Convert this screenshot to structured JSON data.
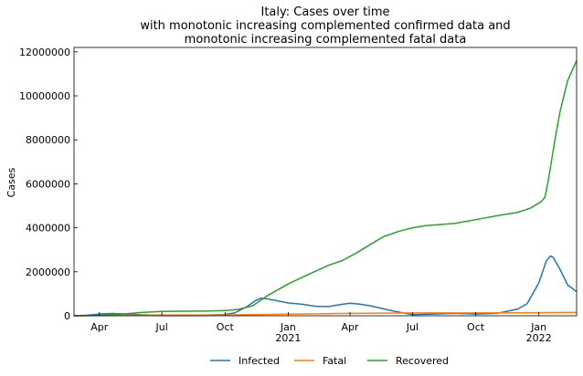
{
  "chart_data": {
    "type": "line",
    "title": [
      "Italy: Cases over time",
      "with monotonic increasing complemented confirmed data and",
      "monotonic increasing complemented fatal data"
    ],
    "xlabel": "",
    "ylabel": "Cases",
    "xlim": [
      "2020-02-24",
      "2022-02-25"
    ],
    "ylim": [
      0,
      12200000
    ],
    "x_ticks": [
      {
        "date": "2020-04-01",
        "label": "Apr",
        "sublabel": ""
      },
      {
        "date": "2020-07-01",
        "label": "Jul",
        "sublabel": ""
      },
      {
        "date": "2020-10-01",
        "label": "Oct",
        "sublabel": ""
      },
      {
        "date": "2021-01-01",
        "label": "Jan",
        "sublabel": "2021"
      },
      {
        "date": "2021-04-01",
        "label": "Apr",
        "sublabel": ""
      },
      {
        "date": "2021-07-01",
        "label": "Jul",
        "sublabel": ""
      },
      {
        "date": "2021-10-01",
        "label": "Oct",
        "sublabel": ""
      },
      {
        "date": "2022-01-01",
        "label": "Jan",
        "sublabel": "2022"
      }
    ],
    "y_ticks": [
      {
        "value": 0,
        "label": "0"
      },
      {
        "value": 2000000,
        "label": "2000000"
      },
      {
        "value": 4000000,
        "label": "4000000"
      },
      {
        "value": 6000000,
        "label": "6000000"
      },
      {
        "value": 8000000,
        "label": "8000000"
      },
      {
        "value": 10000000,
        "label": "10000000"
      },
      {
        "value": 12000000,
        "label": "12000000"
      }
    ],
    "grid": false,
    "legend_position": "bottom-center",
    "series": [
      {
        "name": "Infected",
        "color": "#1f77b4",
        "points": [
          [
            "2020-02-24",
            0
          ],
          [
            "2020-03-15",
            25000
          ],
          [
            "2020-04-05",
            90000
          ],
          [
            "2020-04-20",
            105000
          ],
          [
            "2020-05-10",
            85000
          ],
          [
            "2020-06-01",
            45000
          ],
          [
            "2020-07-01",
            15000
          ],
          [
            "2020-08-15",
            15000
          ],
          [
            "2020-09-15",
            40000
          ],
          [
            "2020-10-01",
            60000
          ],
          [
            "2020-10-15",
            130000
          ],
          [
            "2020-11-01",
            400000
          ],
          [
            "2020-11-15",
            700000
          ],
          [
            "2020-11-23",
            800000
          ],
          [
            "2020-12-01",
            770000
          ],
          [
            "2020-12-15",
            690000
          ],
          [
            "2021-01-01",
            580000
          ],
          [
            "2021-01-20",
            530000
          ],
          [
            "2021-02-10",
            430000
          ],
          [
            "2021-03-01",
            420000
          ],
          [
            "2021-03-20",
            520000
          ],
          [
            "2021-04-01",
            570000
          ],
          [
            "2021-04-15",
            530000
          ],
          [
            "2021-05-01",
            450000
          ],
          [
            "2021-06-01",
            230000
          ],
          [
            "2021-07-01",
            50000
          ],
          [
            "2021-08-01",
            80000
          ],
          [
            "2021-09-01",
            110000
          ],
          [
            "2021-10-01",
            80000
          ],
          [
            "2021-11-01",
            110000
          ],
          [
            "2021-12-01",
            300000
          ],
          [
            "2021-12-15",
            550000
          ],
          [
            "2022-01-01",
            1500000
          ],
          [
            "2022-01-12",
            2500000
          ],
          [
            "2022-01-18",
            2720000
          ],
          [
            "2022-01-22",
            2650000
          ],
          [
            "2022-02-01",
            2100000
          ],
          [
            "2022-02-12",
            1400000
          ],
          [
            "2022-02-25",
            1100000
          ]
        ]
      },
      {
        "name": "Fatal",
        "color": "#ff7f0e",
        "points": [
          [
            "2020-02-24",
            0
          ],
          [
            "2020-04-01",
            13000
          ],
          [
            "2020-06-01",
            33000
          ],
          [
            "2020-10-01",
            36000
          ],
          [
            "2021-01-01",
            75000
          ],
          [
            "2021-04-01",
            110000
          ],
          [
            "2021-07-01",
            128000
          ],
          [
            "2021-10-01",
            131000
          ],
          [
            "2022-01-01",
            138000
          ],
          [
            "2022-02-25",
            153000
          ]
        ]
      },
      {
        "name": "Recovered",
        "color": "#2ca02c",
        "points": [
          [
            "2020-02-24",
            0
          ],
          [
            "2020-04-01",
            15000
          ],
          [
            "2020-05-01",
            70000
          ],
          [
            "2020-06-01",
            150000
          ],
          [
            "2020-07-01",
            195000
          ],
          [
            "2020-08-01",
            205000
          ],
          [
            "2020-09-01",
            215000
          ],
          [
            "2020-10-01",
            240000
          ],
          [
            "2020-10-20",
            290000
          ],
          [
            "2020-11-10",
            450000
          ],
          [
            "2020-12-01",
            900000
          ],
          [
            "2021-01-01",
            1450000
          ],
          [
            "2021-02-01",
            1900000
          ],
          [
            "2021-03-01",
            2300000
          ],
          [
            "2021-03-20",
            2500000
          ],
          [
            "2021-04-10",
            2850000
          ],
          [
            "2021-05-01",
            3250000
          ],
          [
            "2021-05-20",
            3600000
          ],
          [
            "2021-06-10",
            3830000
          ],
          [
            "2021-07-01",
            4000000
          ],
          [
            "2021-07-20",
            4100000
          ],
          [
            "2021-09-01",
            4200000
          ],
          [
            "2021-10-01",
            4370000
          ],
          [
            "2021-11-01",
            4550000
          ],
          [
            "2021-12-01",
            4700000
          ],
          [
            "2021-12-20",
            4900000
          ],
          [
            "2022-01-05",
            5200000
          ],
          [
            "2022-01-10",
            5400000
          ],
          [
            "2022-01-15",
            6200000
          ],
          [
            "2022-01-25",
            8100000
          ],
          [
            "2022-02-01",
            9300000
          ],
          [
            "2022-02-12",
            10700000
          ],
          [
            "2022-02-25",
            11600000
          ]
        ]
      }
    ]
  }
}
